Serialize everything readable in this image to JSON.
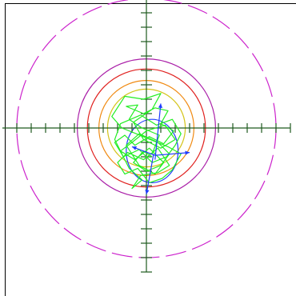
{
  "chart_data": {
    "type": "scatter",
    "title": "",
    "xlabel": "",
    "ylabel": "",
    "xlim": [
      -1.0,
      1.0
    ],
    "ylim": [
      -1.0,
      1.0
    ],
    "grid": false,
    "legend": "none",
    "axis_tick_step": 0.1,
    "colors": {
      "axes": "#1f5a1f",
      "frame": "#000000",
      "trace": "#22ee22",
      "blue": "#1e3cff",
      "dashed_ring": "#cc22cc",
      "purple_ring": "#aa1fa8",
      "red_ring": "#e0201e",
      "orange_ring": "#f08a12",
      "yellow_ring": "#d4c41a"
    },
    "rings": [
      {
        "name": "outer-dashed",
        "cx": 0.0,
        "cy": 0.0,
        "rx": 0.9,
        "ry": 0.9,
        "dashed": true,
        "color_key": "dashed_ring"
      },
      {
        "name": "purple",
        "cx": 0.0,
        "cy": 0.0,
        "rx": 0.48,
        "ry": 0.48,
        "dashed": false,
        "color_key": "purple_ring"
      },
      {
        "name": "red",
        "cx": 0.0,
        "cy": 0.0,
        "rx": 0.41,
        "ry": 0.41,
        "dashed": false,
        "color_key": "red_ring"
      },
      {
        "name": "orange",
        "cx": 0.0,
        "cy": 0.0,
        "rx": 0.33,
        "ry": 0.33,
        "dashed": false,
        "color_key": "orange_ring"
      },
      {
        "name": "yellow",
        "cx": 0.0,
        "cy": 0.0,
        "rx": 0.27,
        "ry": 0.27,
        "dashed": false,
        "color_key": "yellow_ring"
      },
      {
        "name": "blue-ellipse",
        "cx": 0.04,
        "cy": -0.16,
        "rx": 0.18,
        "ry": 0.22,
        "dashed": false,
        "color_key": "blue"
      }
    ],
    "axis_arrows": [
      {
        "name": "arrow-up",
        "from": [
          0.06,
          -0.22
        ],
        "to": [
          0.1,
          0.17
        ]
      },
      {
        "name": "arrow-down",
        "from": [
          0.05,
          -0.18
        ],
        "to": [
          0.0,
          -0.46
        ]
      },
      {
        "name": "arrow-right",
        "from": [
          0.06,
          -0.19
        ],
        "to": [
          0.3,
          -0.17
        ]
      },
      {
        "name": "arrow-left",
        "from": [
          0.06,
          -0.19
        ],
        "to": [
          -0.1,
          -0.13
        ]
      }
    ],
    "trace": [
      [
        0.04,
        -0.18
      ],
      [
        0.09,
        -0.05
      ],
      [
        -0.03,
        0.0
      ],
      [
        -0.12,
        0.06
      ],
      [
        -0.06,
        0.16
      ],
      [
        -0.14,
        0.15
      ],
      [
        -0.02,
        0.1
      ],
      [
        0.06,
        0.14
      ],
      [
        0.15,
        0.12
      ],
      [
        0.1,
        0.03
      ],
      [
        0.19,
        -0.02
      ],
      [
        0.12,
        -0.11
      ],
      [
        0.02,
        -0.06
      ],
      [
        -0.08,
        -0.12
      ],
      [
        -0.15,
        -0.05
      ],
      [
        -0.22,
        -0.1
      ],
      [
        -0.16,
        -0.2
      ],
      [
        -0.05,
        -0.15
      ],
      [
        0.04,
        -0.24
      ],
      [
        0.14,
        -0.2
      ],
      [
        0.2,
        -0.12
      ],
      [
        0.24,
        -0.04
      ],
      [
        0.18,
        0.06
      ],
      [
        0.07,
        0.02
      ],
      [
        -0.04,
        0.09
      ],
      [
        -0.18,
        0.03
      ],
      [
        -0.22,
        -0.08
      ],
      [
        -0.12,
        -0.28
      ],
      [
        -0.03,
        -0.36
      ],
      [
        -0.1,
        -0.42
      ],
      [
        -0.04,
        -0.33
      ],
      [
        0.08,
        -0.31
      ],
      [
        0.16,
        -0.26
      ],
      [
        0.08,
        -0.14
      ],
      [
        -0.02,
        -0.22
      ],
      [
        -0.13,
        -0.17
      ],
      [
        -0.2,
        -0.24
      ],
      [
        -0.15,
        -0.32
      ],
      [
        -0.06,
        -0.28
      ],
      [
        0.02,
        -0.38
      ],
      [
        0.11,
        -0.35
      ],
      [
        0.18,
        -0.29
      ],
      [
        0.24,
        -0.18
      ],
      [
        0.15,
        -0.13
      ],
      [
        0.05,
        -0.09
      ],
      [
        -0.07,
        -0.04
      ],
      [
        -0.17,
        0.0
      ],
      [
        -0.24,
        0.08
      ],
      [
        -0.15,
        0.22
      ],
      [
        -0.02,
        0.2
      ],
      [
        0.1,
        0.24
      ],
      [
        0.04,
        0.13
      ],
      [
        -0.09,
        0.04
      ],
      [
        -0.02,
        -0.08
      ],
      [
        0.1,
        -0.14
      ],
      [
        0.2,
        -0.08
      ],
      [
        0.13,
        0.02
      ],
      [
        0.0,
        -0.02
      ],
      [
        -0.1,
        -0.1
      ],
      [
        -0.18,
        -0.16
      ],
      [
        -0.08,
        -0.22
      ],
      [
        0.02,
        -0.14
      ],
      [
        0.12,
        -0.24
      ],
      [
        0.06,
        -0.32
      ],
      [
        -0.05,
        -0.26
      ],
      [
        -0.14,
        -0.12
      ],
      [
        -0.05,
        -0.04
      ],
      [
        0.08,
        -0.1
      ],
      [
        0.16,
        -0.18
      ],
      [
        0.1,
        -0.26
      ],
      [
        0.0,
        -0.3
      ],
      [
        -0.09,
        -0.24
      ],
      [
        -0.02,
        -0.16
      ],
      [
        0.04,
        -0.2
      ]
    ]
  }
}
